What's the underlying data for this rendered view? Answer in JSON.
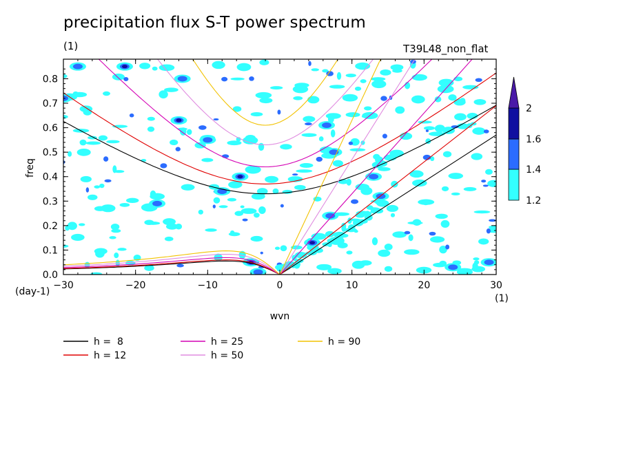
{
  "title": "precipitation flux S-T power spectrum",
  "subtitle_left": "(1)",
  "subtitle_right": "T39L48_non_flat",
  "chart_data": {
    "type": "contour",
    "xlabel": "wvn",
    "ylabel": "freq",
    "x_unit": "(1)",
    "y_unit": "(day-1)",
    "xlim": [
      -30,
      30
    ],
    "ylim": [
      0,
      0.88
    ],
    "x_ticks": [
      -30,
      -20,
      -10,
      0,
      10,
      20,
      30
    ],
    "y_ticks": [
      0.0,
      0.1,
      0.2,
      0.3,
      0.4,
      0.5,
      0.6,
      0.7,
      0.8
    ],
    "y_tick_labels": [
      "0.0",
      "0.1",
      "0.2",
      "0.3",
      "0.4",
      "0.5",
      "0.6",
      "0.7",
      "0.8"
    ],
    "colorbar": {
      "levels": [
        1.2,
        1.4,
        1.6,
        2
      ],
      "labels": [
        "1.2",
        "1.4",
        "1.6",
        "2"
      ],
      "colors": [
        "#33ffff",
        "#2b6cff",
        "#1010a0",
        "#4a1aa8"
      ]
    },
    "legend": [
      {
        "label": "h =  8",
        "color": "#000000"
      },
      {
        "label": "h = 25",
        "color": "#d400b4"
      },
      {
        "label": "h = 90",
        "color": "#f2c200"
      },
      {
        "label": "h = 12",
        "color": "#e00000"
      },
      {
        "label": "h = 50",
        "color": "#e08ce0"
      }
    ],
    "dispersion_curves": {
      "equivalent_depths": [
        8,
        12,
        25,
        50,
        90
      ],
      "min_freq_at_wvn_minus2": [
        0.33,
        0.37,
        0.44,
        0.53,
        0.61
      ],
      "kelvin_slope_freq_per_wvn": [
        0.019,
        0.023,
        0.033,
        0.047,
        0.063
      ]
    },
    "blobs": [
      {
        "x": 4.5,
        "y": 0.13,
        "level": 3
      },
      {
        "x": -5.5,
        "y": 0.4,
        "level": 3
      },
      {
        "x": -21.5,
        "y": 0.85,
        "level": 3
      },
      {
        "x": -13.5,
        "y": 0.8,
        "level": 2
      },
      {
        "x": -14,
        "y": 0.63,
        "level": 3
      },
      {
        "x": -8,
        "y": 0.34,
        "level": 2
      },
      {
        "x": 7,
        "y": 0.24,
        "level": 2
      },
      {
        "x": 7.5,
        "y": 0.5,
        "level": 2
      },
      {
        "x": 13,
        "y": 0.4,
        "level": 2
      },
      {
        "x": -4,
        "y": 0.05,
        "level": 3
      },
      {
        "x": 24,
        "y": 0.03,
        "level": 2
      },
      {
        "x": 29,
        "y": 0.05,
        "level": 2
      },
      {
        "x": -17,
        "y": 0.29,
        "level": 2
      },
      {
        "x": -10,
        "y": 0.55,
        "level": 2
      },
      {
        "x": -28,
        "y": 0.85,
        "level": 2
      },
      {
        "x": -30,
        "y": 0.72,
        "level": 2
      },
      {
        "x": 14,
        "y": 0.32,
        "level": 2
      },
      {
        "x": -3,
        "y": 0.01,
        "level": 2
      },
      {
        "x": 6.5,
        "y": 0.61,
        "level": 2
      }
    ]
  }
}
